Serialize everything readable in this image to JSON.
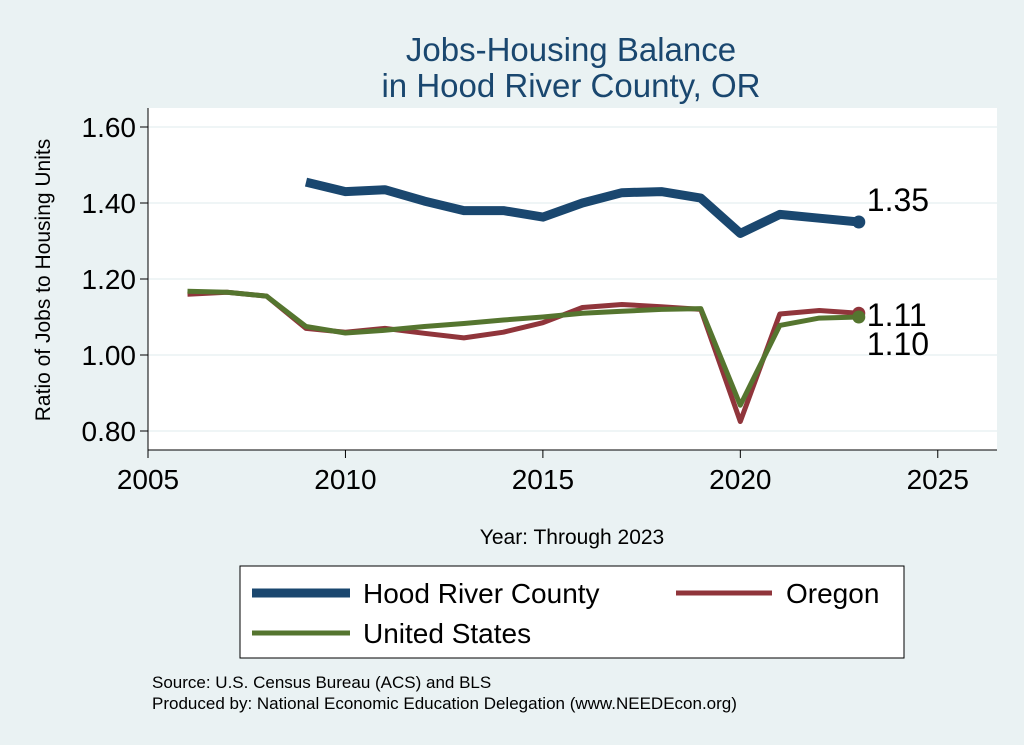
{
  "chart_data": {
    "type": "line",
    "title": [
      "Jobs-Housing Balance",
      "in Hood River County, OR"
    ],
    "xlabel": "Year: Through 2023",
    "ylabel": "Ratio of Jobs to Housing Units",
    "xlim": [
      2005,
      2026.5
    ],
    "ylim": [
      0.75,
      1.65
    ],
    "xticks": [
      2005,
      2010,
      2015,
      2020,
      2025
    ],
    "yticks": [
      0.8,
      1.0,
      1.2,
      1.4,
      1.6
    ],
    "ytick_labels": [
      "0.80",
      "1.00",
      "1.20",
      "1.40",
      "1.60"
    ],
    "grid": true,
    "series": [
      {
        "name": "Hood River County",
        "color": "#1a476f",
        "x": [
          2009,
          2010,
          2011,
          2012,
          2013,
          2014,
          2015,
          2016,
          2017,
          2018,
          2019,
          2020,
          2021,
          2022,
          2023
        ],
        "values": [
          1.455,
          1.43,
          1.435,
          1.405,
          1.38,
          1.38,
          1.363,
          1.4,
          1.427,
          1.43,
          1.413,
          1.32,
          1.37,
          1.36,
          1.35
        ],
        "end_label": "1.35"
      },
      {
        "name": "Oregon",
        "color": "#90353b",
        "x": [
          2006,
          2007,
          2008,
          2009,
          2010,
          2011,
          2012,
          2013,
          2014,
          2015,
          2016,
          2017,
          2018,
          2019,
          2020,
          2021,
          2022,
          2023
        ],
        "values": [
          1.16,
          1.165,
          1.155,
          1.07,
          1.06,
          1.07,
          1.057,
          1.045,
          1.06,
          1.085,
          1.125,
          1.133,
          1.127,
          1.12,
          0.825,
          1.108,
          1.117,
          1.11
        ],
        "end_label": "1.11"
      },
      {
        "name": "United States",
        "color": "#55752f",
        "x": [
          2006,
          2007,
          2008,
          2009,
          2010,
          2011,
          2012,
          2013,
          2014,
          2015,
          2016,
          2017,
          2018,
          2019,
          2020,
          2021,
          2022,
          2023
        ],
        "values": [
          1.168,
          1.165,
          1.155,
          1.075,
          1.058,
          1.065,
          1.075,
          1.083,
          1.092,
          1.1,
          1.11,
          1.115,
          1.12,
          1.122,
          0.868,
          1.078,
          1.097,
          1.1
        ],
        "end_label": "1.10"
      }
    ],
    "legend": {
      "position": "bottom",
      "entries": [
        "Hood River County",
        "Oregon",
        "United States"
      ]
    },
    "notes": [
      "Source: U.S. Census Bureau (ACS) and BLS",
      "Produced by: National Economic Education Delegation (www.NEEDEcon.org)"
    ]
  },
  "colors": {
    "outer_background": "#eaf2f3",
    "plot_background": "#ffffff",
    "grid": "#eaf2f3",
    "title": "#1a476f"
  }
}
